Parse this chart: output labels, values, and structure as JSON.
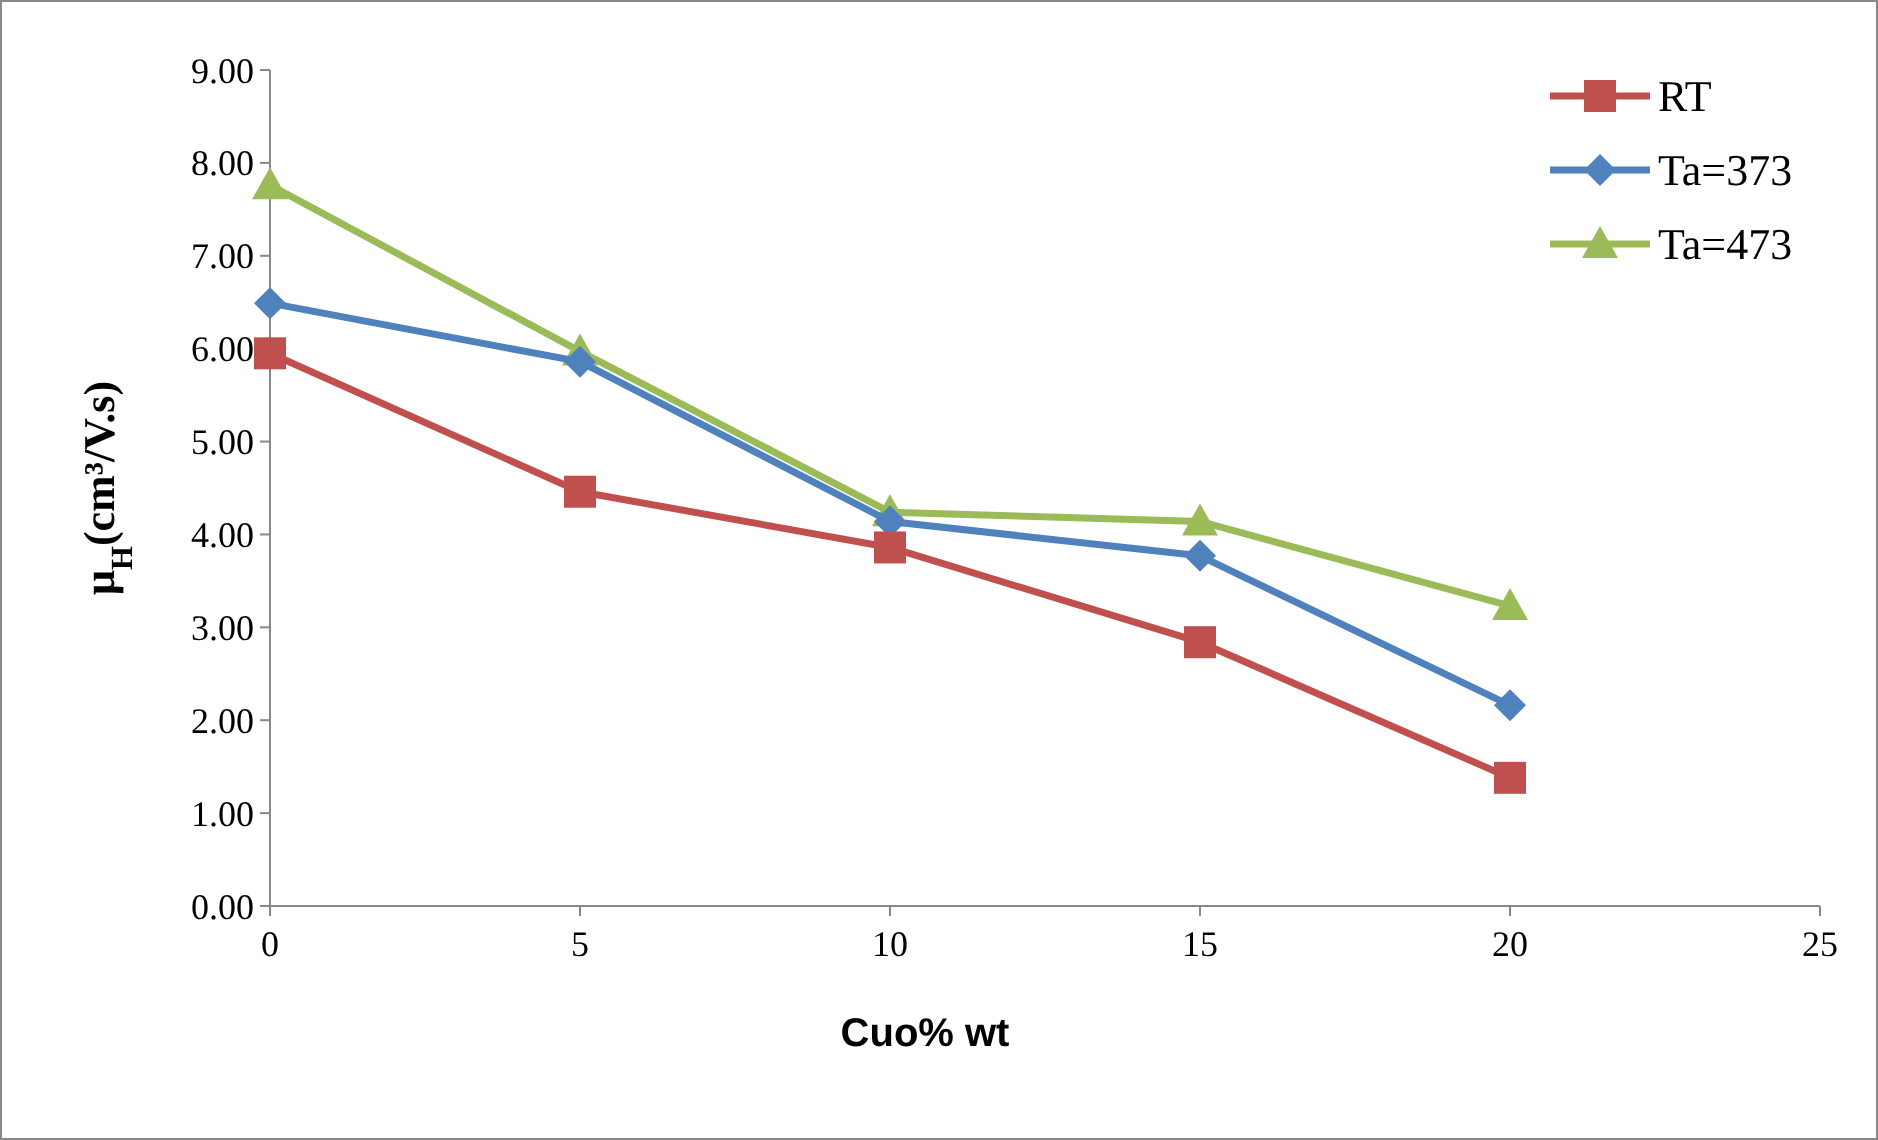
{
  "chart_data": {
    "type": "line",
    "xlabel": "Cuo% wt",
    "ylabel": "μ$_{H}$(cm³/V.s)",
    "x": [
      0,
      5,
      10,
      15,
      20
    ],
    "series": [
      {
        "name": "RT",
        "color": "#c0504d",
        "marker": "square",
        "values": [
          5.95,
          4.46,
          3.86,
          2.84,
          1.38
        ]
      },
      {
        "name": "Ta=373",
        "color": "#4f81bd",
        "marker": "diamond",
        "values": [
          6.49,
          5.86,
          4.14,
          3.77,
          2.16
        ]
      },
      {
        "name": "Ta=473",
        "color": "#9bbb59",
        "marker": "triangle",
        "values": [
          7.76,
          5.97,
          4.24,
          4.14,
          3.23
        ]
      }
    ],
    "xlim": [
      0,
      25
    ],
    "xticks": [
      0,
      5,
      10,
      15,
      20,
      25
    ],
    "ylim": [
      0,
      9
    ],
    "yticks": [
      {
        "value": 0,
        "label": "0.00"
      },
      {
        "value": 1,
        "label": "1.00"
      },
      {
        "value": 2,
        "label": "2.00"
      },
      {
        "value": 3,
        "label": "3.00"
      },
      {
        "value": 4,
        "label": "4.00"
      },
      {
        "value": 5,
        "label": "5.00"
      },
      {
        "value": 6,
        "label": "6.00"
      },
      {
        "value": 7,
        "label": "7.00"
      },
      {
        "value": 8,
        "label": "8.00"
      },
      {
        "value": 9,
        "label": "9.00"
      }
    ],
    "grid": false,
    "legend": "top right",
    "line_style": "solid"
  }
}
